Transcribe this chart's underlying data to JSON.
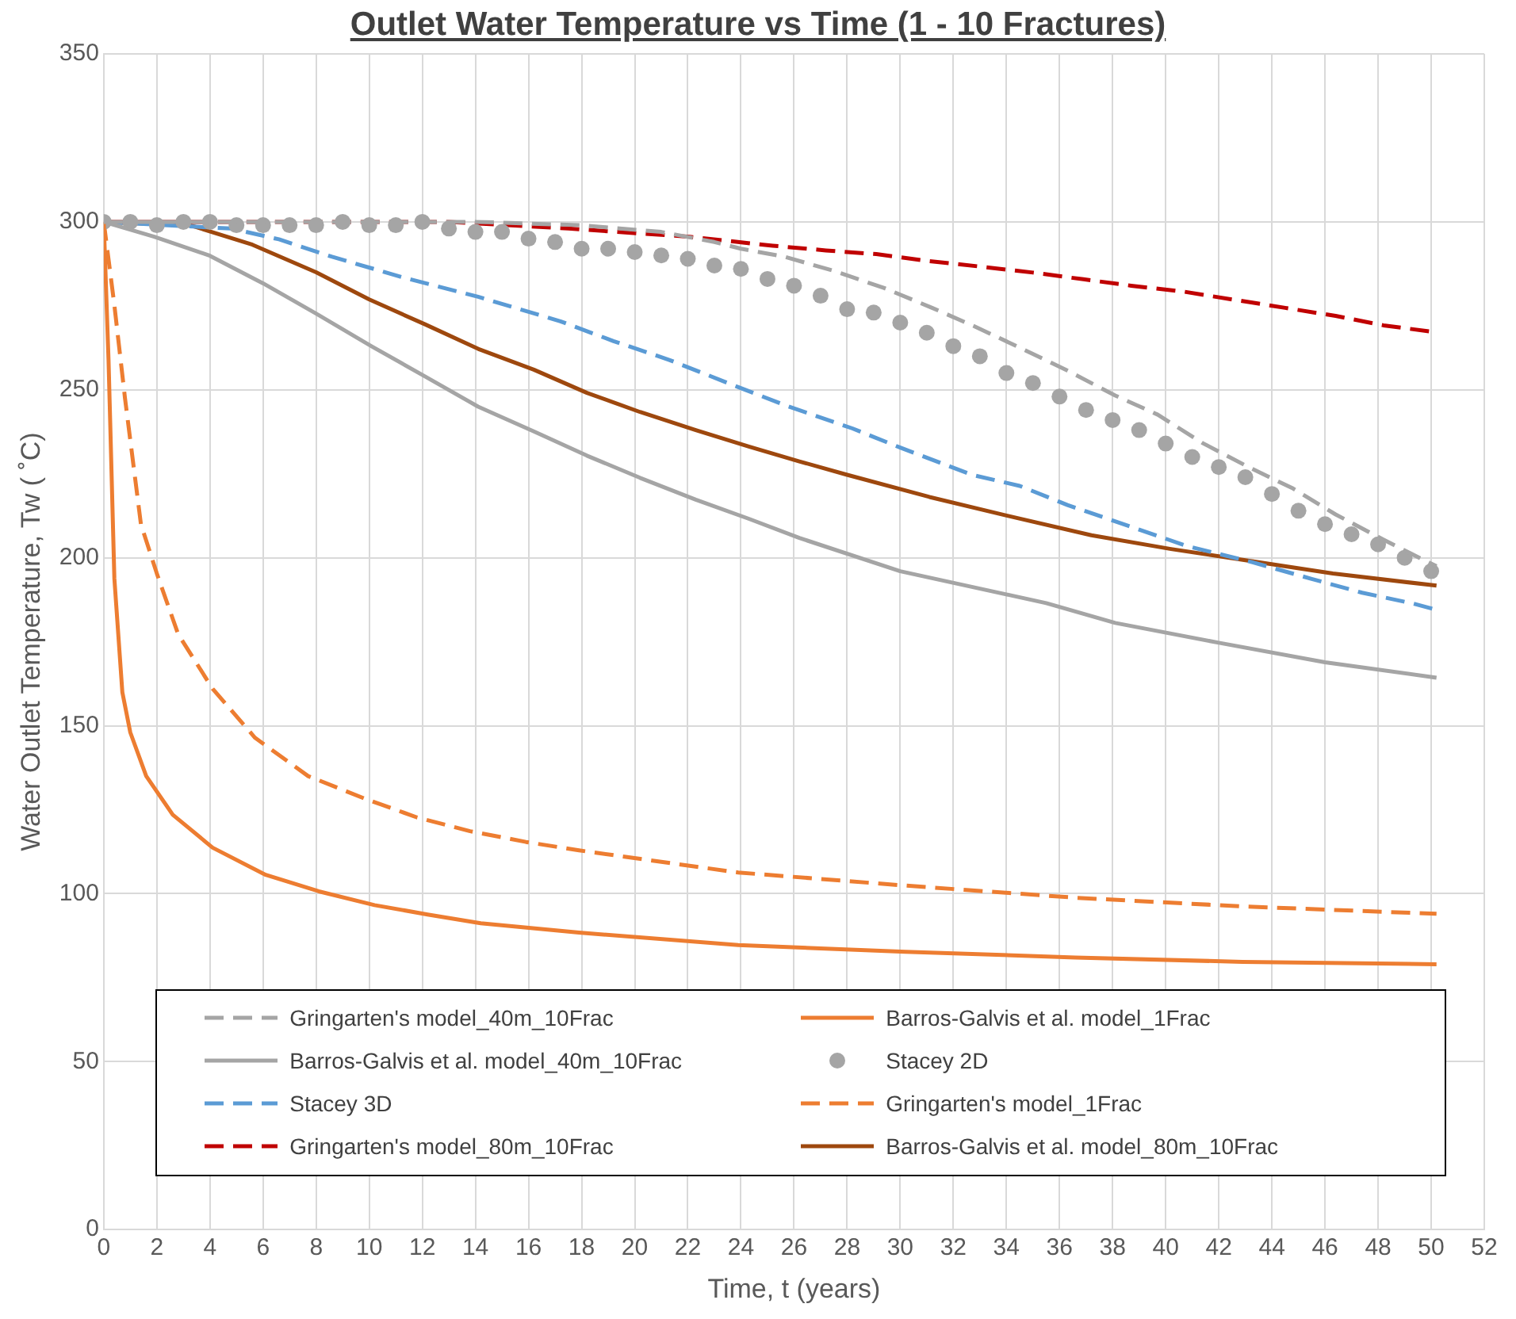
{
  "chart_data": {
    "type": "line",
    "title": "Outlet Water Temperature vs Time (1 - 10 Fractures)",
    "xlabel": "Time, t (years)",
    "ylabel": "Water Outlet Temperature, Tw ( ˚C)",
    "xlim": [
      0,
      52
    ],
    "xticks": [
      0,
      2,
      4,
      6,
      8,
      10,
      12,
      14,
      16,
      18,
      20,
      22,
      24,
      26,
      28,
      30,
      32,
      34,
      36,
      38,
      40,
      42,
      44,
      46,
      48,
      50,
      52
    ],
    "ylim": [
      0,
      350
    ],
    "yticks": [
      0,
      50,
      100,
      150,
      200,
      250,
      300,
      350
    ],
    "grid": true,
    "legend": "bottom",
    "marker": "none",
    "series": [
      {
        "name": "Gringarten's model_40m_10Frac",
        "color": "#a5a5a5",
        "line_style": "dashed",
        "x": [
          0,
          5,
          10,
          14,
          18,
          21,
          23,
          24,
          25.65,
          27.5,
          29.4,
          31.2,
          32.8,
          34.6,
          36.3,
          38.1,
          39.7,
          41.4,
          43.1,
          44.8,
          46.4,
          48.2,
          49.7,
          50.2
        ],
        "values": [
          300,
          300,
          300,
          300,
          299,
          297,
          294,
          292,
          289.6,
          285.4,
          280.3,
          274.4,
          268.9,
          262.2,
          255.7,
          248.3,
          242.6,
          234.1,
          227.1,
          220.6,
          212.9,
          205.4,
          199.4,
          197.5
        ]
      },
      {
        "name": "Barros-Galvis et al. model_1Frac",
        "color": "#ed7d31",
        "line_style": "solid",
        "x": [
          0,
          0.18,
          0.4,
          0.7,
          1.0,
          1.6,
          2.6,
          4.1,
          6.1,
          8.1,
          10.2,
          12.2,
          14.2,
          17.9,
          23.9,
          30.2,
          36.6,
          42.9,
          50.2
        ],
        "values": [
          300,
          258.9,
          193.8,
          160,
          148,
          135,
          123.5,
          113.7,
          105.6,
          100.7,
          96.6,
          93.8,
          91.2,
          88.4,
          84.7,
          82.7,
          81,
          79.7,
          79
        ]
      },
      {
        "name": "Barros-Galvis et al. model_40m_10Frac",
        "color": "#a5a5a5",
        "line_style": "solid",
        "x": [
          0,
          1.9,
          4,
          6,
          8,
          10.1,
          12.1,
          14.1,
          16.2,
          18.2,
          20.2,
          22.3,
          24.3,
          26.2,
          30,
          35.5,
          38.1,
          42,
          46,
          50.2
        ],
        "values": [
          300,
          295.6,
          289.9,
          281.7,
          272.7,
          262.9,
          254,
          245,
          237.6,
          230.4,
          223.8,
          217.3,
          211.6,
          205.9,
          196,
          186.5,
          180.6,
          174.7,
          168.9,
          164.3
        ]
      },
      {
        "name": "Stacey 2D",
        "type": "scatter",
        "marker": "circle",
        "color": "#a5a5a5",
        "x": [
          0,
          1,
          2,
          3,
          4,
          5,
          6,
          7,
          8,
          9,
          10,
          11,
          12,
          13,
          14,
          15,
          16,
          17,
          18,
          19,
          20,
          21,
          22,
          23,
          24,
          25,
          26,
          27,
          28,
          29,
          30,
          31,
          32,
          33,
          34,
          35,
          36,
          37,
          38,
          39,
          40,
          41,
          42,
          43,
          44,
          45,
          46,
          47,
          48,
          49,
          50
        ],
        "values": [
          300,
          300,
          299,
          300,
          300,
          299,
          299,
          299,
          299,
          300,
          299,
          299,
          300,
          298,
          297,
          297,
          295,
          294,
          292,
          292,
          291,
          290,
          289,
          287,
          286,
          283,
          281,
          278,
          274,
          273,
          270,
          267,
          263,
          260,
          255,
          252,
          248,
          244,
          241,
          238,
          234,
          230,
          227,
          224,
          219,
          214,
          210,
          207,
          204,
          200,
          196
        ]
      },
      {
        "name": "Stacey 3D",
        "color": "#5b9bd5",
        "line_style": "dashed",
        "x": [
          0,
          4.8,
          6.6,
          8.6,
          11.3,
          14.1,
          17.2,
          19.2,
          21.3,
          23.9,
          25.8,
          28.2,
          30,
          32.7,
          34.5,
          36.3,
          39,
          40.8,
          43.3,
          45.5,
          47.4,
          49.3,
          50.2
        ],
        "values": [
          300,
          298,
          294.8,
          289.6,
          283.4,
          277.7,
          270.4,
          264.5,
          258.9,
          250.8,
          245,
          238.5,
          232.8,
          224.7,
          221.4,
          215.7,
          208.4,
          203.5,
          198.6,
          193.7,
          189.6,
          186.4,
          184.5
        ]
      },
      {
        "name": "Gringarten's model_1Frac",
        "color": "#ed7d31",
        "line_style": "dashed",
        "x": [
          0,
          0.4,
          0.8,
          1.4,
          2,
          2.8,
          4.1,
          5.7,
          7.7,
          9.8,
          11.8,
          13.8,
          15.9,
          17.9,
          23.9,
          30.2,
          36.6,
          42.9,
          50.2
        ],
        "values": [
          300,
          275.2,
          247.5,
          210,
          195.3,
          177.3,
          161,
          146.4,
          135,
          128.4,
          122.7,
          118.6,
          115.4,
          112.9,
          106.3,
          102.4,
          98.8,
          96.2,
          94
        ]
      },
      {
        "name": "Gringarten's model_80m_10Frac",
        "color": "#c00000",
        "line_style": "dashed",
        "x": [
          0,
          13,
          17.5,
          22,
          25.2,
          27.2,
          29.1,
          31.1,
          33,
          35,
          36.9,
          38.7,
          40.7,
          42.5,
          44.5,
          46.4,
          48.2,
          50.2
        ],
        "values": [
          300,
          300,
          298,
          295.6,
          292.9,
          291.5,
          290.4,
          288.3,
          286.7,
          284.9,
          282.9,
          281,
          279.2,
          276.9,
          274.4,
          272,
          269.2,
          267.1
        ]
      },
      {
        "name": "Barros-Galvis et al. model_80m_10Frac",
        "color": "#9e480e",
        "line_style": "solid",
        "x": [
          0,
          3.3,
          5.6,
          8,
          10,
          12.1,
          14.1,
          16.2,
          18.2,
          20.2,
          22.3,
          24.3,
          26.2,
          28,
          31.1,
          34.1,
          37.2,
          40.2,
          43.3,
          46.3,
          50.2
        ],
        "values": [
          300,
          298.9,
          293.2,
          285,
          276.9,
          269.5,
          262.2,
          256,
          249.1,
          243.4,
          238,
          233.1,
          228.7,
          224.7,
          218.1,
          212.4,
          206.7,
          202.6,
          198.9,
          195.3,
          191.7
        ]
      }
    ]
  }
}
